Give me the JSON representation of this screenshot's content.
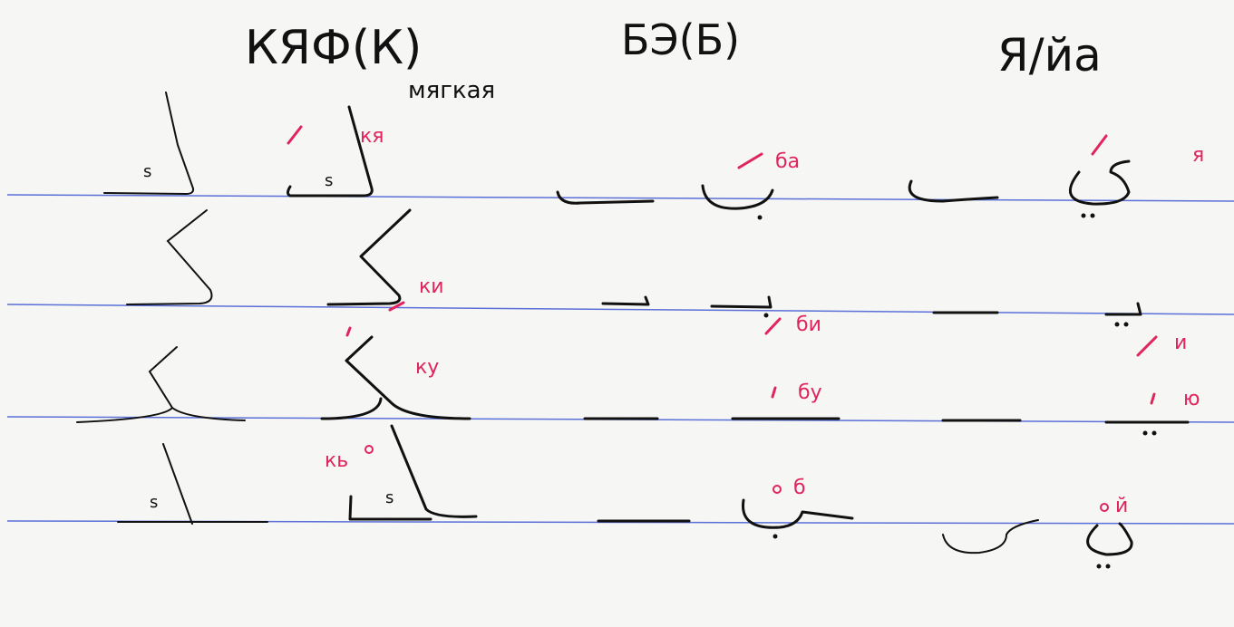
{
  "header": {
    "titles": [
      "КЯФ(К)",
      "БЭ(Б)",
      "Я/йа"
    ],
    "subtitle": "мягкая"
  },
  "labels": [
    "кя",
    "ки",
    "ку",
    "кь",
    "ба",
    "би",
    "бу",
    "б",
    "я",
    "и",
    "ю",
    "й"
  ]
}
